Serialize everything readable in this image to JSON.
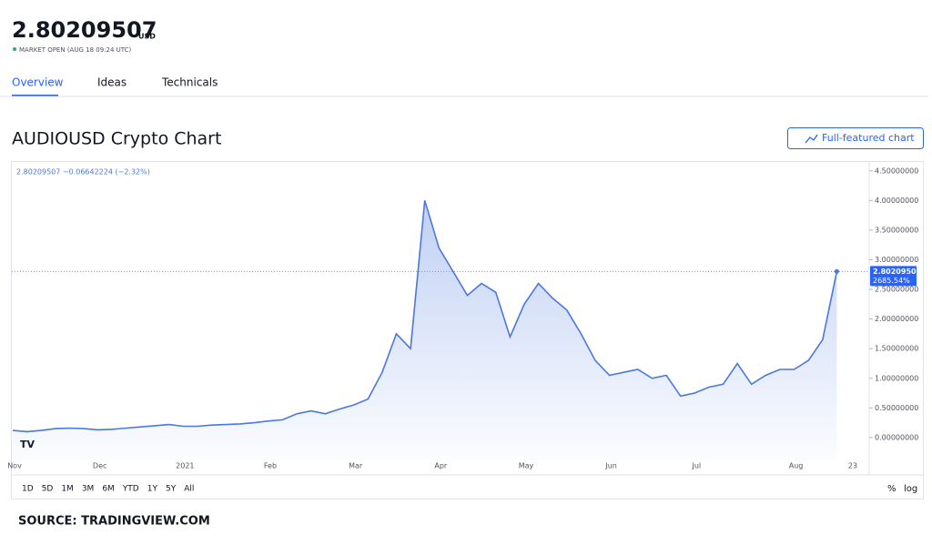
{
  "header": {
    "price": "2.80209507",
    "currency": "USD",
    "status": "MARKET OPEN (AUG 18 09:24 UTC)"
  },
  "tabs": [
    "Overview",
    "Ideas",
    "Technicals"
  ],
  "section_title": "AUDIOUSD Crypto Chart",
  "button": "Full-featured chart",
  "ranges": [
    "1D",
    "5D",
    "1M",
    "3M",
    "6M",
    "YTD",
    "1Y",
    "5Y",
    "All"
  ],
  "scale_options": [
    "%",
    "log"
  ],
  "source": "SOURCE: TRADINGVIEW.COM",
  "chart_data": {
    "type": "area",
    "legend_text": "2.80209507 −0.06642224 (−2.32%)",
    "last_change_label": "2685.54%",
    "color": "#4a78e0",
    "categories": [
      "Nov",
      null,
      null,
      null,
      null,
      null,
      "Dec",
      null,
      null,
      null,
      null,
      null,
      "2021",
      null,
      null,
      null,
      null,
      null,
      "Feb",
      null,
      null,
      null,
      null,
      null,
      "Mar",
      null,
      null,
      null,
      null,
      null,
      "Apr",
      null,
      null,
      null,
      null,
      null,
      "May",
      null,
      null,
      null,
      null,
      null,
      "Jun",
      null,
      null,
      null,
      null,
      null,
      "Jul",
      null,
      null,
      null,
      null,
      null,
      null,
      "Aug",
      null,
      null,
      null,
      "23"
    ],
    "values": [
      0.12,
      0.1,
      0.12,
      0.15,
      0.16,
      0.15,
      0.13,
      0.14,
      0.16,
      0.18,
      0.2,
      0.22,
      0.19,
      0.19,
      0.21,
      0.22,
      0.23,
      0.25,
      0.28,
      0.3,
      0.4,
      0.45,
      0.4,
      0.48,
      0.55,
      0.65,
      1.1,
      1.75,
      1.5,
      4.0,
      3.2,
      2.8,
      2.4,
      2.6,
      2.45,
      1.7,
      2.25,
      2.6,
      2.35,
      2.15,
      1.75,
      1.3,
      1.05,
      1.1,
      1.15,
      1.0,
      1.05,
      0.7,
      0.75,
      0.85,
      0.9,
      1.25,
      0.9,
      1.05,
      1.15,
      1.15,
      1.3,
      1.65,
      2.80209507,
      null
    ],
    "ylim": [
      -0.37,
      4.65
    ],
    "yticks": [
      {
        "value": 0,
        "label": "0.00000000"
      },
      {
        "value": 0.5,
        "label": "0.50000000"
      },
      {
        "value": 1,
        "label": "1.00000000"
      },
      {
        "value": 1.5,
        "label": "1.50000000"
      },
      {
        "value": 2,
        "label": "2.00000000"
      },
      {
        "value": 2.5,
        "label": "2.50000000"
      },
      {
        "value": 3,
        "label": "3.00000000"
      },
      {
        "value": 3.5,
        "label": "3.50000000"
      },
      {
        "value": 4,
        "label": "4.00000000"
      },
      {
        "value": 4.5,
        "label": "4.50000000"
      }
    ]
  }
}
